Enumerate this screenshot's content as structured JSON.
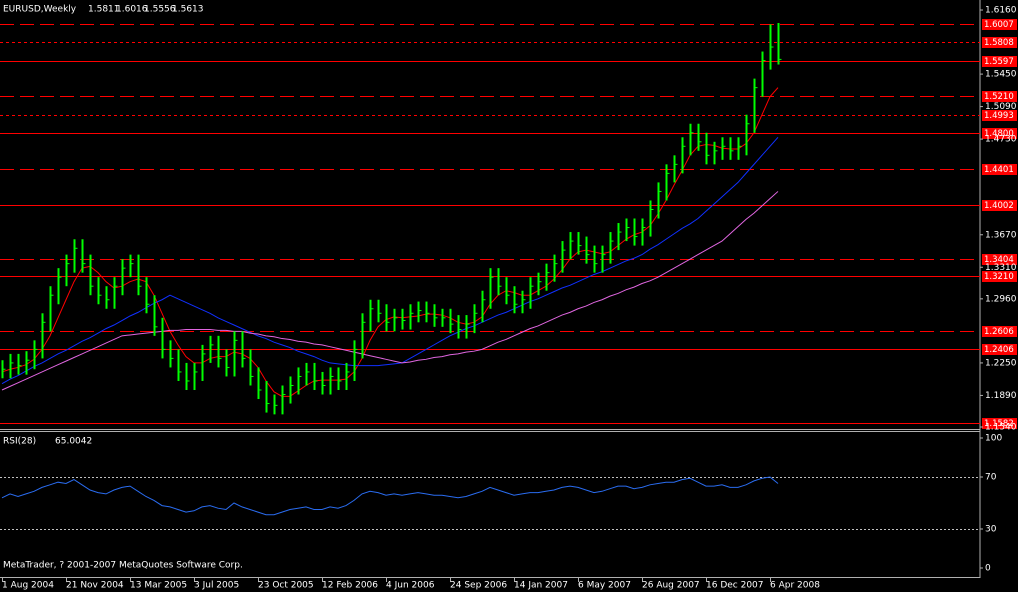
{
  "chart_data": {
    "type": "ohlc",
    "symbol": "EURUSD,Weekly",
    "ohlc_header": [
      1.5811,
      1.6016,
      1.5556,
      1.5613
    ],
    "footer": "MetaTrader, ? 2001-2007 MetaQuotes Software Corp.",
    "bar_color": "#00ff00",
    "categories": [
      "1 Aug 2004",
      null,
      null,
      null,
      null,
      null,
      null,
      null,
      "21 Nov 2004",
      null,
      null,
      null,
      null,
      null,
      null,
      null,
      "13 Mar 2005",
      null,
      null,
      null,
      null,
      null,
      null,
      null,
      "3 Jul 2005",
      null,
      null,
      null,
      null,
      null,
      null,
      null,
      "23 Oct 2005",
      null,
      null,
      null,
      null,
      null,
      null,
      null,
      "12 Feb 2006",
      null,
      null,
      null,
      null,
      null,
      null,
      null,
      "4 Jun 2006",
      null,
      null,
      null,
      null,
      null,
      null,
      null,
      "24 Sep 2006",
      null,
      null,
      null,
      null,
      null,
      null,
      null,
      "14 Jan 2007",
      null,
      null,
      null,
      null,
      null,
      null,
      null,
      "6 May 2007",
      null,
      null,
      null,
      null,
      null,
      null,
      null,
      "26 Aug 2007",
      null,
      null,
      null,
      null,
      null,
      null,
      null,
      "16 Dec 2007",
      null,
      null,
      null,
      null,
      null,
      null,
      null,
      "6 Apr 2008",
      null
    ],
    "high": [
      1.228,
      1.235,
      1.235,
      1.238,
      1.25,
      1.28,
      1.31,
      1.33,
      1.345,
      1.362,
      1.362,
      1.345,
      1.32,
      1.31,
      1.32,
      1.34,
      1.345,
      1.345,
      1.32,
      1.3,
      1.275,
      1.25,
      1.24,
      1.225,
      1.225,
      1.245,
      1.255,
      1.255,
      1.24,
      1.26,
      1.26,
      1.24,
      1.22,
      1.205,
      1.19,
      1.2,
      1.21,
      1.22,
      1.225,
      1.225,
      1.215,
      1.22,
      1.22,
      1.225,
      1.25,
      1.28,
      1.295,
      1.295,
      1.29,
      1.285,
      1.285,
      1.29,
      1.293,
      1.293,
      1.29,
      1.285,
      1.285,
      1.278,
      1.278,
      1.29,
      1.305,
      1.33,
      1.33,
      1.32,
      1.31,
      1.305,
      1.32,
      1.325,
      1.335,
      1.345,
      1.36,
      1.37,
      1.37,
      1.365,
      1.355,
      1.355,
      1.37,
      1.38,
      1.385,
      1.385,
      1.385,
      1.405,
      1.425,
      1.445,
      1.455,
      1.475,
      1.49,
      1.49,
      1.48,
      1.47,
      1.475,
      1.475,
      1.475,
      1.5,
      1.54,
      1.57,
      1.6,
      1.6016
    ],
    "low": [
      1.208,
      1.208,
      1.212,
      1.212,
      1.218,
      1.23,
      1.26,
      1.29,
      1.31,
      1.325,
      1.325,
      1.3,
      1.29,
      1.285,
      1.285,
      1.3,
      1.32,
      1.3,
      1.28,
      1.255,
      1.23,
      1.22,
      1.205,
      1.195,
      1.195,
      1.205,
      1.225,
      1.22,
      1.21,
      1.21,
      1.22,
      1.2,
      1.185,
      1.17,
      1.168,
      1.168,
      1.18,
      1.19,
      1.2,
      1.195,
      1.19,
      1.19,
      1.195,
      1.195,
      1.205,
      1.23,
      1.26,
      1.27,
      1.26,
      1.26,
      1.262,
      1.262,
      1.27,
      1.27,
      1.265,
      1.265,
      1.258,
      1.252,
      1.252,
      1.258,
      1.27,
      1.285,
      1.3,
      1.29,
      1.28,
      1.28,
      1.285,
      1.3,
      1.305,
      1.315,
      1.325,
      1.34,
      1.345,
      1.335,
      1.325,
      1.325,
      1.335,
      1.35,
      1.36,
      1.355,
      1.355,
      1.365,
      1.385,
      1.405,
      1.425,
      1.435,
      1.455,
      1.46,
      1.445,
      1.445,
      1.45,
      1.45,
      1.45,
      1.455,
      1.48,
      1.52,
      1.55,
      1.5556
    ],
    "close": [
      1.218,
      1.225,
      1.222,
      1.228,
      1.24,
      1.27,
      1.3,
      1.32,
      1.335,
      1.352,
      1.335,
      1.31,
      1.3,
      1.295,
      1.31,
      1.33,
      1.335,
      1.31,
      1.29,
      1.265,
      1.24,
      1.23,
      1.215,
      1.205,
      1.215,
      1.235,
      1.245,
      1.23,
      1.22,
      1.25,
      1.23,
      1.21,
      1.195,
      1.18,
      1.178,
      1.19,
      1.2,
      1.21,
      1.215,
      1.205,
      1.2,
      1.21,
      1.205,
      1.215,
      1.24,
      1.27,
      1.285,
      1.28,
      1.27,
      1.275,
      1.272,
      1.28,
      1.283,
      1.28,
      1.275,
      1.275,
      1.268,
      1.262,
      1.268,
      1.28,
      1.295,
      1.32,
      1.31,
      1.3,
      1.29,
      1.295,
      1.31,
      1.315,
      1.325,
      1.335,
      1.35,
      1.36,
      1.355,
      1.345,
      1.335,
      1.345,
      1.36,
      1.37,
      1.375,
      1.365,
      1.375,
      1.395,
      1.415,
      1.435,
      1.445,
      1.465,
      1.48,
      1.47,
      1.455,
      1.46,
      1.465,
      1.46,
      1.465,
      1.49,
      1.53,
      1.56,
      1.575,
      1.5613
    ],
    "series": [
      {
        "color": "#ff0000",
        "values": [
          1.215,
          1.218,
          1.22,
          1.223,
          1.229,
          1.24,
          1.255,
          1.275,
          1.295,
          1.315,
          1.33,
          1.332,
          1.325,
          1.315,
          1.308,
          1.31,
          1.315,
          1.318,
          1.315,
          1.3,
          1.28,
          1.26,
          1.245,
          1.232,
          1.225,
          1.225,
          1.23,
          1.232,
          1.232,
          1.237,
          1.235,
          1.23,
          1.22,
          1.205,
          1.193,
          1.188,
          1.188,
          1.194,
          1.2,
          1.205,
          1.206,
          1.206,
          1.206,
          1.207,
          1.215,
          1.23,
          1.25,
          1.265,
          1.273,
          1.276,
          1.275,
          1.276,
          1.277,
          1.279,
          1.279,
          1.278,
          1.275,
          1.27,
          1.268,
          1.27,
          1.276,
          1.29,
          1.3,
          1.305,
          1.303,
          1.3,
          1.3,
          1.305,
          1.31,
          1.318,
          1.328,
          1.34,
          1.348,
          1.35,
          1.348,
          1.346,
          1.348,
          1.355,
          1.362,
          1.367,
          1.37,
          1.377,
          1.39,
          1.405,
          1.422,
          1.438,
          1.455,
          1.465,
          1.467,
          1.466,
          1.463,
          1.462,
          1.462,
          1.468,
          1.48,
          1.5,
          1.52,
          1.53
        ]
      },
      {
        "color": "#1030ff",
        "values": [
          1.202,
          1.207,
          1.211,
          1.216,
          1.221,
          1.225,
          1.23,
          1.235,
          1.239,
          1.244,
          1.249,
          1.253,
          1.258,
          1.263,
          1.267,
          1.272,
          1.277,
          1.281,
          1.286,
          1.291,
          1.295,
          1.3,
          1.296,
          1.292,
          1.288,
          1.284,
          1.28,
          1.275,
          1.271,
          1.267,
          1.263,
          1.259,
          1.255,
          1.252,
          1.248,
          1.245,
          1.242,
          1.238,
          1.235,
          1.232,
          1.228,
          1.225,
          1.224,
          1.223,
          1.222,
          1.222,
          1.222,
          1.222,
          1.223,
          1.224,
          1.225,
          1.23,
          1.235,
          1.24,
          1.245,
          1.25,
          1.255,
          1.259,
          1.263,
          1.266,
          1.27,
          1.274,
          1.278,
          1.281,
          1.285,
          1.289,
          1.293,
          1.296,
          1.3,
          1.304,
          1.308,
          1.311,
          1.315,
          1.319,
          1.323,
          1.326,
          1.33,
          1.334,
          1.338,
          1.341,
          1.345,
          1.351,
          1.356,
          1.362,
          1.368,
          1.374,
          1.379,
          1.385,
          1.393,
          1.401,
          1.409,
          1.417,
          1.425,
          1.435,
          1.445,
          1.455,
          1.465,
          1.475
        ]
      },
      {
        "color": "#e066e0",
        "values": [
          1.195,
          1.199,
          1.203,
          1.207,
          1.211,
          1.215,
          1.219,
          1.223,
          1.227,
          1.231,
          1.235,
          1.239,
          1.243,
          1.247,
          1.251,
          1.255,
          1.256,
          1.257,
          1.258,
          1.259,
          1.26,
          1.261,
          1.261,
          1.262,
          1.262,
          1.262,
          1.262,
          1.261,
          1.261,
          1.26,
          1.26,
          1.258,
          1.257,
          1.255,
          1.254,
          1.252,
          1.251,
          1.249,
          1.248,
          1.246,
          1.245,
          1.243,
          1.241,
          1.239,
          1.237,
          1.235,
          1.233,
          1.231,
          1.229,
          1.227,
          1.225,
          1.226,
          1.228,
          1.229,
          1.231,
          1.232,
          1.234,
          1.235,
          1.237,
          1.238,
          1.24,
          1.244,
          1.248,
          1.251,
          1.255,
          1.259,
          1.263,
          1.266,
          1.27,
          1.274,
          1.278,
          1.281,
          1.285,
          1.288,
          1.292,
          1.295,
          1.299,
          1.302,
          1.306,
          1.309,
          1.313,
          1.316,
          1.32,
          1.325,
          1.33,
          1.335,
          1.34,
          1.345,
          1.35,
          1.355,
          1.36,
          1.368,
          1.376,
          1.384,
          1.391,
          1.399,
          1.407,
          1.415
        ]
      }
    ],
    "ylim": [
      1.1529,
      1.6271
    ],
    "yticks": [
      {
        "value": 1.616,
        "label": "1.6160"
      },
      {
        "value": 1.545,
        "label": "1.5450"
      },
      {
        "value": 1.509,
        "label": "1.5090"
      },
      {
        "value": 1.473,
        "label": "1.4730"
      },
      {
        "value": 1.367,
        "label": "1.3670"
      },
      {
        "value": 1.331,
        "label": "1.3310"
      },
      {
        "value": 1.296,
        "label": "1.2960"
      },
      {
        "value": 1.225,
        "label": "1.2250"
      },
      {
        "value": 1.189,
        "label": "1.1890"
      },
      {
        "value": 1.154,
        "label": "1.1540"
      }
    ],
    "level_color": "#ff0000",
    "levels": [
      {
        "value": 1.6007,
        "style": "long-dash"
      },
      {
        "value": 1.5808,
        "style": "short-dash"
      },
      {
        "value": 1.5597,
        "style": "solid"
      },
      {
        "value": 1.521,
        "label": "1.5210",
        "style": "long-dash"
      },
      {
        "value": 1.4993,
        "style": "short-dash"
      },
      {
        "value": 1.48,
        "label": "1.4800",
        "style": "solid"
      },
      {
        "value": 1.4401,
        "style": "long-dash"
      },
      {
        "value": 1.4002,
        "style": "solid"
      },
      {
        "value": 1.3404,
        "style": "long-dash"
      },
      {
        "value": 1.321,
        "label": "1.3210",
        "style": "solid"
      },
      {
        "value": 1.2606,
        "style": "long-dash"
      },
      {
        "value": 1.2406,
        "style": "solid"
      },
      {
        "value": 1.1582,
        "style": "solid"
      }
    ],
    "rsi": {
      "name": "RSI(28)",
      "color": "#2a6cf0",
      "values": [
        54,
        57,
        55,
        57,
        59,
        62,
        64,
        66,
        65,
        68,
        64,
        60,
        58,
        57,
        60,
        62,
        63,
        59,
        55,
        52,
        48,
        47,
        45,
        43,
        44,
        47,
        48,
        46,
        45,
        50,
        47,
        45,
        43,
        41,
        41,
        43,
        45,
        46,
        47,
        45,
        45,
        47,
        46,
        48,
        52,
        57,
        59,
        58,
        56,
        57,
        56,
        57,
        58,
        57,
        56,
        56,
        55,
        54,
        55,
        57,
        59,
        62,
        60,
        58,
        56,
        57,
        58,
        58,
        59,
        60,
        62,
        63,
        62,
        60,
        58,
        59,
        61,
        63,
        63,
        61,
        62,
        64,
        65,
        66,
        66,
        68,
        69,
        66,
        63,
        63,
        64,
        62,
        62,
        64,
        67,
        69,
        70,
        65.0042
      ],
      "ylim": [
        0,
        100
      ],
      "yticks": [
        100,
        70,
        30,
        0
      ]
    }
  }
}
